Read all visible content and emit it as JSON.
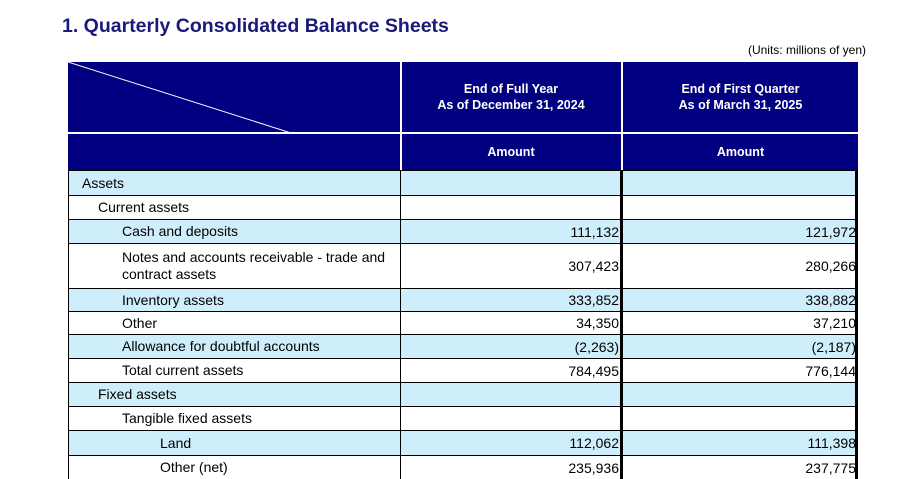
{
  "section_title": "1. Quarterly Consolidated Balance Sheets",
  "units_note": "(Units: millions of yen)",
  "columns": [
    {
      "heading_line1": "End of Full Year",
      "heading_line2": "As of December 31, 2024",
      "sub": "Amount"
    },
    {
      "heading_line1": "End of First Quarter",
      "heading_line2": "As of March 31, 2025",
      "sub": "Amount"
    }
  ],
  "rows": [
    {
      "label": "Assets",
      "indent": 0,
      "a": "",
      "b": "",
      "shaded": true
    },
    {
      "label": "Current assets",
      "indent": 1,
      "a": "",
      "b": "",
      "shaded": false
    },
    {
      "label": "Cash and deposits",
      "indent": 2,
      "a": "111,132",
      "b": "121,972",
      "shaded": true
    },
    {
      "label": "Notes and accounts receivable - trade and contract assets",
      "indent": 2,
      "a": "307,423",
      "b": "280,266",
      "shaded": false
    },
    {
      "label": "Inventory assets",
      "indent": 2,
      "a": "333,852",
      "b": "338,882",
      "shaded": true
    },
    {
      "label": "Other",
      "indent": 2,
      "a": "34,350",
      "b": "37,210",
      "shaded": false
    },
    {
      "label": "Allowance for doubtful accounts",
      "indent": 2,
      "a": "(2,263)",
      "b": "(2,187)",
      "shaded": true
    },
    {
      "label": "Total current assets",
      "indent": 2,
      "a": "784,495",
      "b": "776,144",
      "shaded": false
    },
    {
      "label": "Fixed assets",
      "indent": 1,
      "a": "",
      "b": "",
      "shaded": true
    },
    {
      "label": "Tangible fixed assets",
      "indent": 2,
      "a": "",
      "b": "",
      "shaded": false
    },
    {
      "label": "Land",
      "indent": 3,
      "a": "112,062",
      "b": "111,398",
      "shaded": true
    },
    {
      "label": "Other (net)",
      "indent": 3,
      "a": "235,936",
      "b": "237,775",
      "shaded": false
    }
  ]
}
